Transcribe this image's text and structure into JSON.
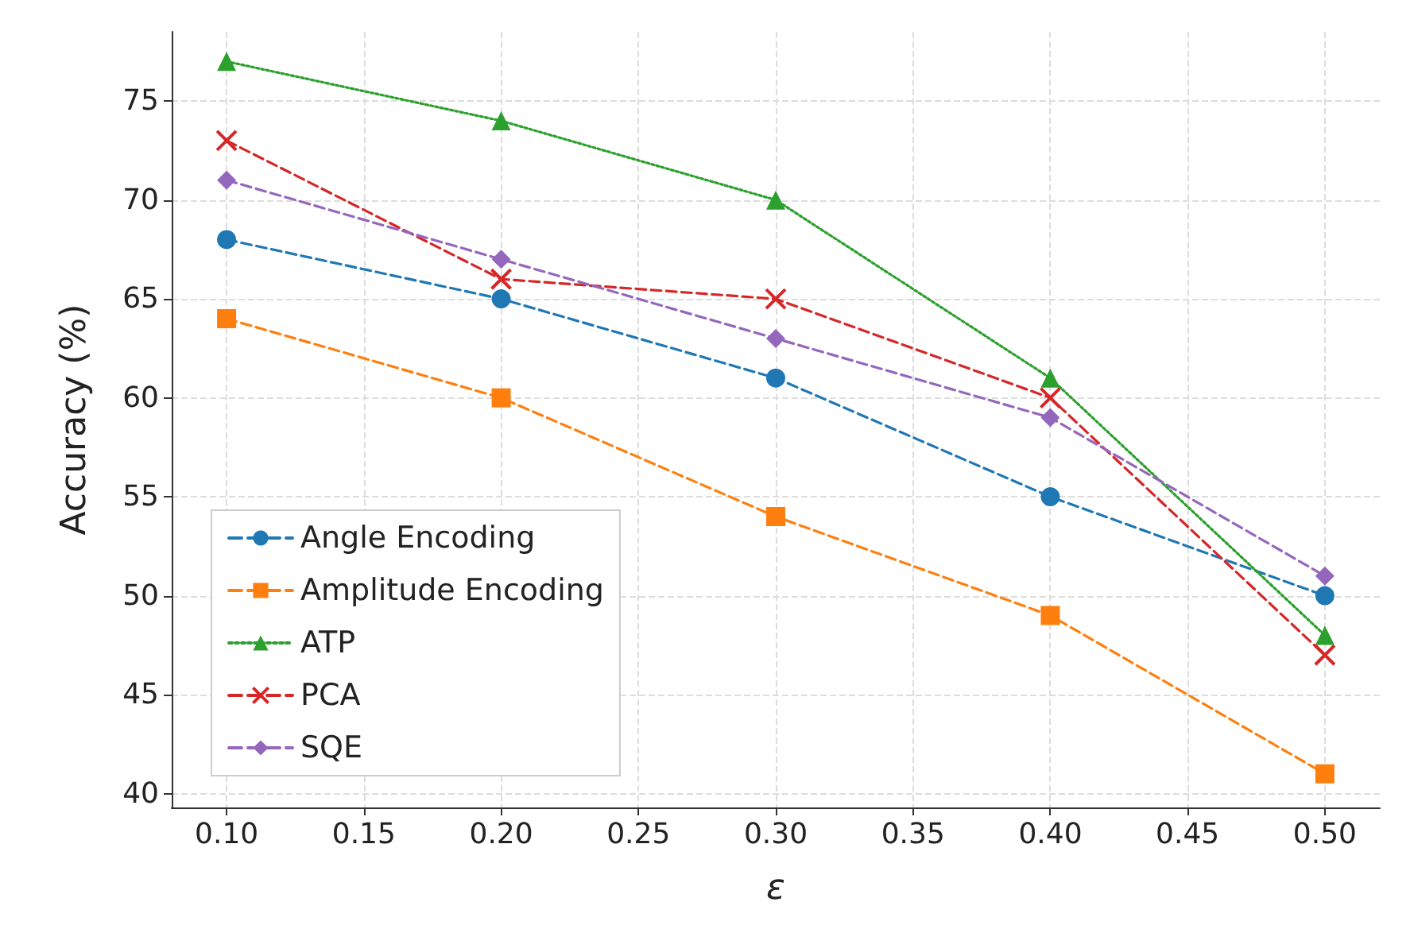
{
  "chart_data": {
    "type": "line",
    "xlabel": "ε",
    "ylabel": "Accuracy (%)",
    "x": [
      0.1,
      0.2,
      0.3,
      0.4,
      0.5
    ],
    "series": [
      {
        "name": "Angle Encoding",
        "color": "#1f77b4",
        "marker": "circle",
        "line_style": "dashed",
        "values": [
          68,
          65,
          61,
          55,
          50
        ]
      },
      {
        "name": "Amplitude Encoding",
        "color": "#ff7f0e",
        "marker": "square",
        "line_style": "dashed",
        "values": [
          64,
          60,
          54,
          49,
          41
        ]
      },
      {
        "name": "ATP",
        "color": "#2ca02c",
        "marker": "triangle",
        "line_style": "dotted",
        "values": [
          77,
          74,
          70,
          61,
          48
        ]
      },
      {
        "name": "PCA",
        "color": "#d62728",
        "marker": "cross",
        "line_style": "dashed",
        "values": [
          73,
          66,
          65,
          60,
          47
        ]
      },
      {
        "name": "SQE",
        "color": "#9467bd",
        "marker": "diamond",
        "line_style": "dashed",
        "values": [
          71,
          67,
          63,
          59,
          51
        ]
      }
    ],
    "xlim": [
      0.08,
      0.52
    ],
    "ylim": [
      39.3,
      78.5
    ],
    "xticks": [
      {
        "value": 0.1,
        "label": "0.10"
      },
      {
        "value": 0.15,
        "label": "0.15"
      },
      {
        "value": 0.2,
        "label": "0.20"
      },
      {
        "value": 0.25,
        "label": "0.25"
      },
      {
        "value": 0.3,
        "label": "0.30"
      },
      {
        "value": 0.35,
        "label": "0.35"
      },
      {
        "value": 0.4,
        "label": "0.40"
      },
      {
        "value": 0.45,
        "label": "0.45"
      },
      {
        "value": 0.5,
        "label": "0.50"
      }
    ],
    "yticks": [
      40,
      45,
      50,
      55,
      60,
      65,
      70,
      75
    ],
    "grid": true,
    "legend": "bottom left"
  }
}
